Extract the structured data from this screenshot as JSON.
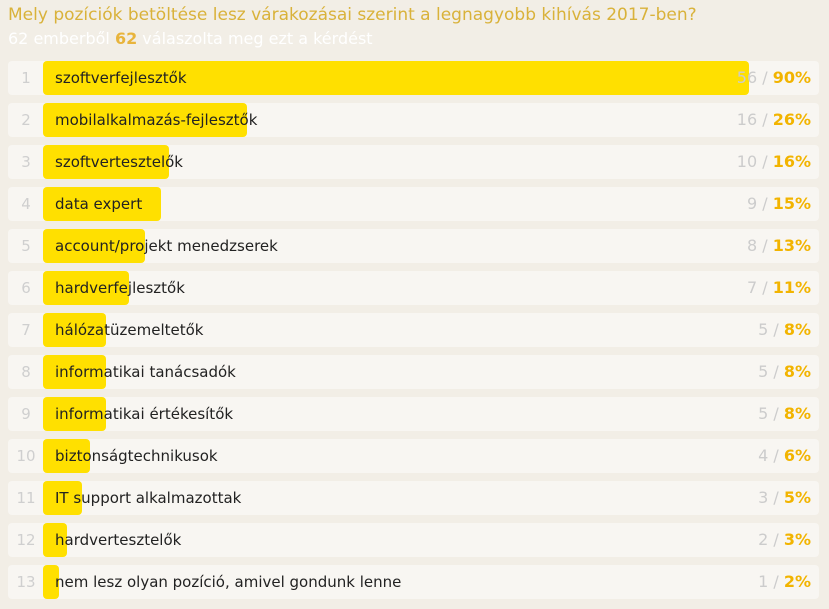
{
  "header": {
    "title": "Mely pozíciók betöltése lesz várakozásai szerint a legnagyobb kihívás 2017-ben?",
    "subtitle_pre": "62 emberből ",
    "subtitle_count": "62",
    "subtitle_post": " válaszolta meg ezt a kérdést"
  },
  "colors": {
    "bar": "#ffe000",
    "percent": "#f2b400",
    "title": "#d9b23a",
    "background": "#f2eee6"
  },
  "chart_data": {
    "type": "bar",
    "orientation": "horizontal",
    "total_respondents": 62,
    "categories": [
      "szoftverfejlesztők",
      "mobilalkalmazás-fejlesztők",
      "szoftvertesztelők",
      "data expert",
      "account/projekt menedzserek",
      "hardverfejlesztők",
      "hálózatüzemeltetők",
      "informatikai tanácsadók",
      "informatikai értékesítők",
      "biztonságtechnikusok",
      "IT support alkalmazottak",
      "hardvertesztelők",
      "nem lesz olyan pozíció, amivel gondunk lenne"
    ],
    "ranks": [
      "1",
      "2",
      "3",
      "4",
      "5",
      "6",
      "7",
      "8",
      "9",
      "10",
      "11",
      "12",
      "13"
    ],
    "counts": [
      56,
      16,
      10,
      9,
      8,
      7,
      5,
      5,
      5,
      4,
      3,
      2,
      1
    ],
    "percent_labels": [
      "90%",
      "26%",
      "16%",
      "15%",
      "13%",
      "11%",
      "8%",
      "8%",
      "8%",
      "6%",
      "5%",
      "3%",
      "2%"
    ],
    "values": [
      90,
      26,
      16,
      15,
      13,
      11,
      8,
      8,
      8,
      6,
      5,
      3,
      2
    ],
    "xlim": [
      0,
      100
    ]
  }
}
